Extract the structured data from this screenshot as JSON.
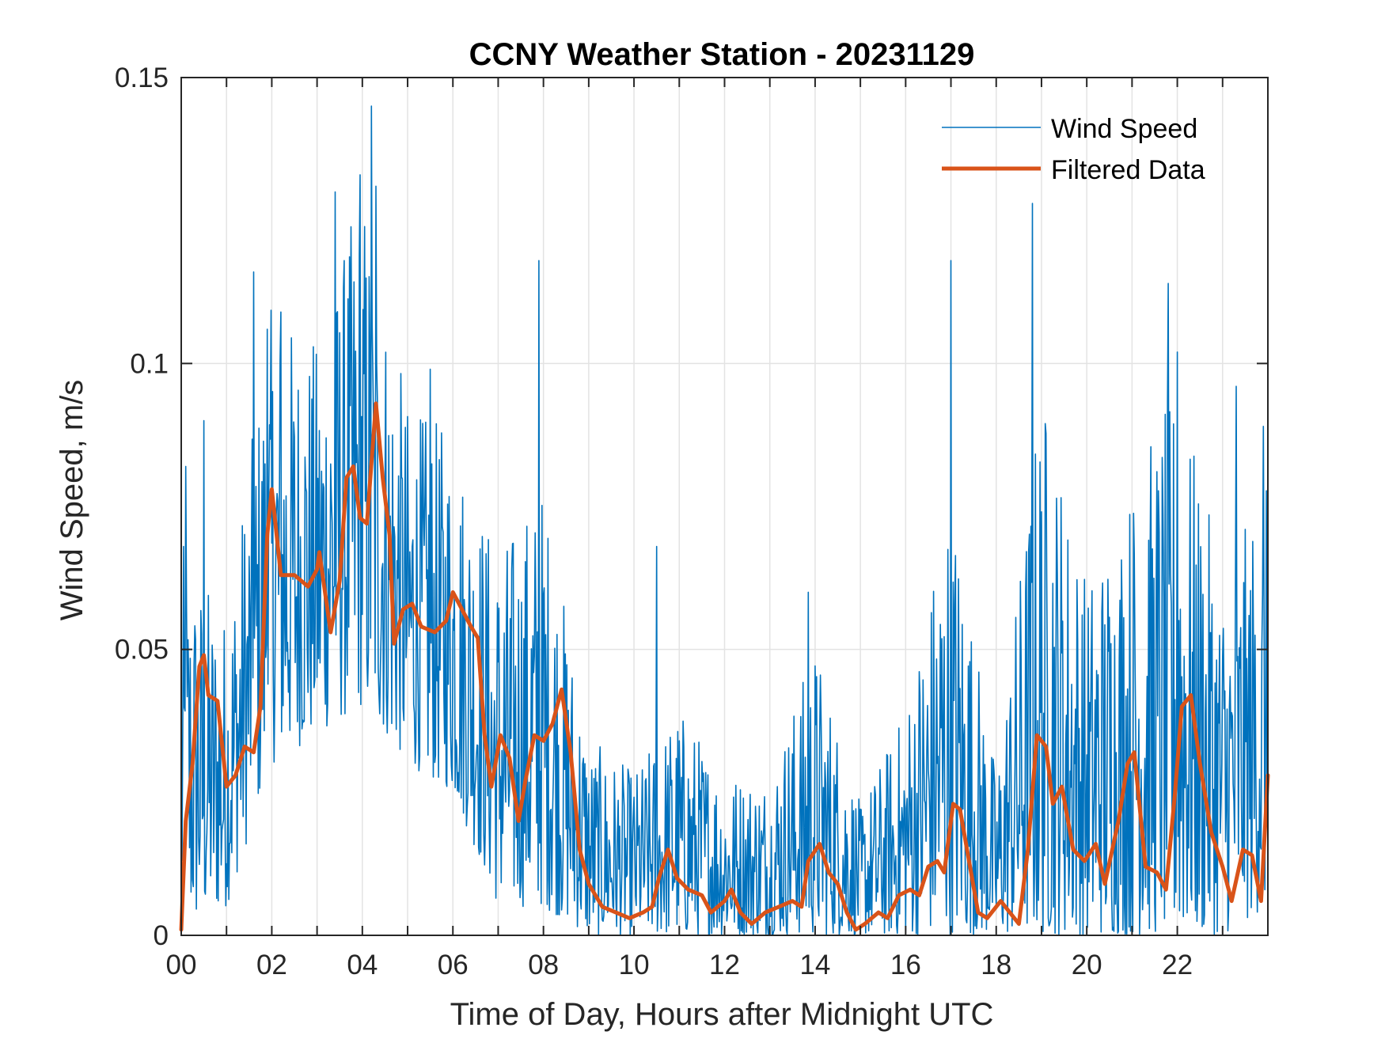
{
  "chart_data": {
    "type": "line",
    "title": "CCNY Weather Station - 20231129",
    "xlabel": "Time of Day, Hours after Midnight UTC",
    "ylabel": "Wind Speed, m/s",
    "xlim": [
      0,
      24
    ],
    "ylim": [
      0,
      0.15
    ],
    "x_ticks": [
      0,
      2,
      4,
      6,
      8,
      10,
      12,
      14,
      16,
      18,
      20,
      22
    ],
    "x_tick_labels": [
      "00",
      "02",
      "04",
      "06",
      "08",
      "10",
      "12",
      "14",
      "16",
      "18",
      "20",
      "22"
    ],
    "x_minor_grid_step_hours": 1,
    "y_ticks": [
      0,
      0.05,
      0.1,
      0.15
    ],
    "y_tick_labels": [
      "0",
      "0.05",
      "0.1",
      "0.15"
    ],
    "grid": true,
    "legend": {
      "placement": "top-right",
      "entries": [
        "Wind Speed",
        "Filtered Data"
      ]
    },
    "colors": {
      "wind_speed": "#0072BD",
      "filtered": "#D95319",
      "grid": "#E3E3E3",
      "axis": "#262626"
    },
    "series": [
      {
        "name": "Filtered Data",
        "x": [
          0.0,
          0.1,
          0.25,
          0.4,
          0.5,
          0.6,
          0.8,
          1.0,
          1.2,
          1.4,
          1.6,
          1.75,
          1.9,
          2.0,
          2.2,
          2.5,
          2.8,
          3.0,
          3.05,
          3.3,
          3.5,
          3.65,
          3.8,
          3.95,
          4.1,
          4.3,
          4.45,
          4.6,
          4.7,
          4.9,
          5.1,
          5.3,
          5.6,
          5.85,
          6.0,
          6.2,
          6.4,
          6.55,
          6.7,
          6.85,
          7.05,
          7.25,
          7.45,
          7.6,
          7.8,
          8.0,
          8.2,
          8.4,
          8.6,
          8.8,
          9.0,
          9.3,
          9.6,
          9.9,
          10.2,
          10.4,
          10.55,
          10.75,
          10.95,
          11.2,
          11.5,
          11.7,
          12.0,
          12.15,
          12.35,
          12.6,
          12.9,
          13.2,
          13.5,
          13.7,
          13.85,
          14.1,
          14.3,
          14.5,
          14.7,
          14.9,
          15.1,
          15.4,
          15.6,
          15.85,
          16.1,
          16.3,
          16.5,
          16.7,
          16.85,
          17.05,
          17.2,
          17.4,
          17.6,
          17.8,
          18.1,
          18.3,
          18.5,
          18.7,
          18.9,
          19.1,
          19.25,
          19.45,
          19.7,
          19.95,
          20.2,
          20.4,
          20.7,
          20.9,
          21.05,
          21.3,
          21.55,
          21.75,
          21.95,
          22.1,
          22.3,
          22.5,
          22.75,
          23.0,
          23.2,
          23.45,
          23.65,
          23.85,
          24.0
        ],
        "values": [
          0.001,
          0.02,
          0.03,
          0.047,
          0.049,
          0.042,
          0.041,
          0.026,
          0.028,
          0.033,
          0.032,
          0.04,
          0.07,
          0.078,
          0.063,
          0.063,
          0.061,
          0.064,
          0.067,
          0.053,
          0.062,
          0.08,
          0.082,
          0.073,
          0.072,
          0.093,
          0.08,
          0.07,
          0.051,
          0.057,
          0.058,
          0.054,
          0.053,
          0.055,
          0.06,
          0.057,
          0.054,
          0.052,
          0.035,
          0.026,
          0.035,
          0.031,
          0.02,
          0.027,
          0.035,
          0.034,
          0.037,
          0.043,
          0.032,
          0.015,
          0.009,
          0.005,
          0.004,
          0.003,
          0.004,
          0.005,
          0.01,
          0.015,
          0.01,
          0.008,
          0.007,
          0.004,
          0.006,
          0.008,
          0.004,
          0.002,
          0.004,
          0.005,
          0.006,
          0.005,
          0.013,
          0.016,
          0.011,
          0.009,
          0.004,
          0.001,
          0.002,
          0.004,
          0.003,
          0.007,
          0.008,
          0.007,
          0.012,
          0.013,
          0.011,
          0.023,
          0.022,
          0.013,
          0.004,
          0.003,
          0.006,
          0.004,
          0.002,
          0.015,
          0.035,
          0.033,
          0.023,
          0.026,
          0.015,
          0.013,
          0.016,
          0.009,
          0.02,
          0.03,
          0.032,
          0.012,
          0.011,
          0.008,
          0.025,
          0.04,
          0.042,
          0.03,
          0.018,
          0.012,
          0.006,
          0.015,
          0.014,
          0.006,
          0.028
        ]
      },
      {
        "name": "Wind Speed",
        "sampling_note": "approximate envelope of raw 1-minute data; notable peaks",
        "peaks": [
          {
            "x": 0.1,
            "value": 0.082
          },
          {
            "x": 0.5,
            "value": 0.09
          },
          {
            "x": 1.6,
            "value": 0.116
          },
          {
            "x": 1.9,
            "value": 0.106
          },
          {
            "x": 2.2,
            "value": 0.109
          },
          {
            "x": 3.4,
            "value": 0.13
          },
          {
            "x": 3.95,
            "value": 0.133
          },
          {
            "x": 4.2,
            "value": 0.145
          },
          {
            "x": 4.3,
            "value": 0.131
          },
          {
            "x": 5.5,
            "value": 0.099
          },
          {
            "x": 7.9,
            "value": 0.118
          },
          {
            "x": 10.5,
            "value": 0.068
          },
          {
            "x": 13.85,
            "value": 0.06
          },
          {
            "x": 17.0,
            "value": 0.118
          },
          {
            "x": 18.8,
            "value": 0.128
          },
          {
            "x": 21.8,
            "value": 0.114
          },
          {
            "x": 22.0,
            "value": 0.102
          },
          {
            "x": 23.3,
            "value": 0.096
          },
          {
            "x": 23.9,
            "value": 0.089
          }
        ],
        "typical_band": [
          {
            "x": 0,
            "low": 0.0,
            "high": 0.06
          },
          {
            "x": 1,
            "low": 0.005,
            "high": 0.05
          },
          {
            "x": 2,
            "low": 0.03,
            "high": 0.1
          },
          {
            "x": 3,
            "low": 0.035,
            "high": 0.095
          },
          {
            "x": 4,
            "low": 0.04,
            "high": 0.12
          },
          {
            "x": 5,
            "low": 0.03,
            "high": 0.085
          },
          {
            "x": 6,
            "low": 0.025,
            "high": 0.08
          },
          {
            "x": 7,
            "low": 0.005,
            "high": 0.06
          },
          {
            "x": 8,
            "low": 0.005,
            "high": 0.07
          },
          {
            "x": 9,
            "low": 0.0,
            "high": 0.03
          },
          {
            "x": 10,
            "low": 0.0,
            "high": 0.025
          },
          {
            "x": 11,
            "low": 0.0,
            "high": 0.035
          },
          {
            "x": 12,
            "low": 0.0,
            "high": 0.025
          },
          {
            "x": 13,
            "low": 0.0,
            "high": 0.025
          },
          {
            "x": 14,
            "low": 0.0,
            "high": 0.045
          },
          {
            "x": 15,
            "low": 0.0,
            "high": 0.02
          },
          {
            "x": 16,
            "low": 0.0,
            "high": 0.035
          },
          {
            "x": 17,
            "low": 0.0,
            "high": 0.07
          },
          {
            "x": 18,
            "low": 0.0,
            "high": 0.025
          },
          {
            "x": 19,
            "low": 0.0,
            "high": 0.085
          },
          {
            "x": 20,
            "low": 0.0,
            "high": 0.055
          },
          {
            "x": 21,
            "low": 0.0,
            "high": 0.07
          },
          {
            "x": 22,
            "low": 0.0,
            "high": 0.085
          },
          {
            "x": 23,
            "low": 0.0,
            "high": 0.055
          },
          {
            "x": 24,
            "low": 0.005,
            "high": 0.07
          }
        ]
      }
    ]
  }
}
